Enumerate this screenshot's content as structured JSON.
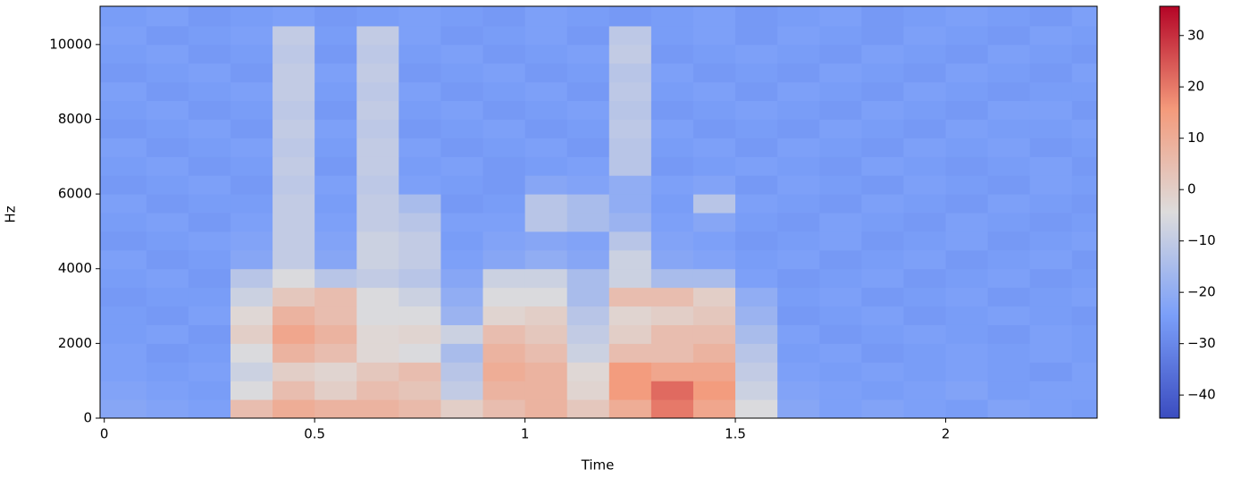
{
  "chart_data": {
    "type": "heatmap",
    "xlabel": "Time",
    "ylabel": "Hz",
    "x_edges": [
      -0.01,
      0.1,
      0.2,
      0.3,
      0.4,
      0.5,
      0.6,
      0.7,
      0.8,
      0.9,
      1.0,
      1.1,
      1.2,
      1.3,
      1.4,
      1.5,
      1.6,
      1.7,
      1.8,
      1.9,
      2.0,
      2.1,
      2.2,
      2.3,
      2.36
    ],
    "y_edges": [
      0,
      500,
      1000,
      1500,
      2000,
      2500,
      3000,
      3500,
      4000,
      4500,
      5000,
      5500,
      6000,
      6500,
      7000,
      7500,
      8000,
      8500,
      9000,
      9500,
      10000,
      10500,
      11025
    ],
    "values": [
      [
        -22,
        -23,
        -24,
        5,
        10,
        8,
        8,
        6,
        0,
        5,
        8,
        2,
        10,
        20,
        12,
        -5,
        -22,
        -24,
        -23,
        -24,
        -25,
        -23,
        -24,
        -25
      ],
      [
        -23,
        -24,
        -25,
        -5,
        5,
        0,
        5,
        3,
        -10,
        8,
        8,
        -2,
        15,
        22,
        15,
        -8,
        -23,
        -24,
        -25,
        -24,
        -23,
        -25,
        -24,
        -24
      ],
      [
        -24,
        -25,
        -24,
        -8,
        0,
        -2,
        2,
        5,
        -12,
        10,
        8,
        -3,
        15,
        12,
        12,
        -10,
        -24,
        -25,
        -24,
        -25,
        -24,
        -25,
        -26,
        -24
      ],
      [
        -24,
        -26,
        -25,
        -5,
        8,
        5,
        -3,
        -5,
        -15,
        8,
        5,
        -8,
        5,
        5,
        8,
        -12,
        -25,
        -24,
        -26,
        -25,
        -24,
        -25,
        -24,
        -25
      ],
      [
        -25,
        -24,
        -26,
        0,
        12,
        8,
        -3,
        -2,
        -8,
        5,
        2,
        -10,
        0,
        5,
        5,
        -15,
        -24,
        -26,
        -25,
        -24,
        -25,
        -26,
        -24,
        -25
      ],
      [
        -25,
        -26,
        -24,
        -3,
        8,
        5,
        -5,
        -5,
        -18,
        -2,
        0,
        -12,
        -2,
        0,
        2,
        -18,
        -26,
        -25,
        -24,
        -26,
        -25,
        -24,
        -25,
        -26
      ],
      [
        -26,
        -25,
        -25,
        -8,
        2,
        5,
        -5,
        -8,
        -20,
        -5,
        -5,
        -15,
        5,
        5,
        0,
        -20,
        -25,
        -24,
        -26,
        -25,
        -24,
        -26,
        -25,
        -24
      ],
      [
        -25,
        -24,
        -26,
        -12,
        -5,
        -12,
        -10,
        -12,
        -22,
        -8,
        -8,
        -15,
        -8,
        -15,
        -15,
        -24,
        -26,
        -25,
        -24,
        -26,
        -25,
        -24,
        -26,
        -25
      ],
      [
        -24,
        -26,
        -25,
        -22,
        -10,
        -22,
        -8,
        -10,
        -24,
        -22,
        -20,
        -22,
        -8,
        -22,
        -23,
        -25,
        -24,
        -26,
        -25,
        -24,
        -26,
        -25,
        -24,
        -26
      ],
      [
        -26,
        -25,
        -24,
        -23,
        -10,
        -23,
        -8,
        -10,
        -25,
        -23,
        -22,
        -23,
        -12,
        -23,
        -24,
        -26,
        -25,
        -24,
        -26,
        -25,
        -24,
        -26,
        -25,
        -24
      ],
      [
        -25,
        -24,
        -26,
        -24,
        -10,
        -24,
        -10,
        -12,
        -24,
        -24,
        -12,
        -15,
        -18,
        -24,
        -22,
        -25,
        -26,
        -24,
        -25,
        -26,
        -24,
        -25,
        -26,
        -25
      ],
      [
        -24,
        -26,
        -25,
        -25,
        -10,
        -25,
        -10,
        -15,
        -26,
        -25,
        -12,
        -15,
        -20,
        -25,
        -12,
        -24,
        -25,
        -26,
        -24,
        -25,
        -26,
        -24,
        -25,
        -26
      ],
      [
        -26,
        -25,
        -24,
        -26,
        -11,
        -24,
        -11,
        -24,
        -25,
        -26,
        -22,
        -23,
        -20,
        -24,
        -23,
        -26,
        -24,
        -25,
        -26,
        -24,
        -25,
        -26,
        -24,
        -25
      ],
      [
        -25,
        -24,
        -26,
        -25,
        -10,
        -26,
        -10,
        -25,
        -24,
        -26,
        -25,
        -24,
        -12,
        -26,
        -25,
        -24,
        -25,
        -26,
        -24,
        -25,
        -26,
        -25,
        -24,
        -26
      ],
      [
        -24,
        -26,
        -25,
        -24,
        -11,
        -25,
        -10,
        -24,
        -26,
        -25,
        -24,
        -26,
        -12,
        -25,
        -24,
        -26,
        -24,
        -25,
        -26,
        -24,
        -25,
        -24,
        -26,
        -25
      ],
      [
        -26,
        -25,
        -24,
        -26,
        -10,
        -24,
        -11,
        -26,
        -25,
        -24,
        -26,
        -25,
        -11,
        -24,
        -26,
        -25,
        -26,
        -24,
        -25,
        -26,
        -24,
        -25,
        -25,
        -24
      ],
      [
        -25,
        -24,
        -26,
        -25,
        -11,
        -26,
        -10,
        -25,
        -24,
        -26,
        -25,
        -24,
        -12,
        -26,
        -25,
        -24,
        -25,
        -26,
        -24,
        -25,
        -26,
        -24,
        -24,
        -26
      ],
      [
        -24,
        -26,
        -25,
        -24,
        -10,
        -25,
        -11,
        -24,
        -26,
        -25,
        -24,
        -26,
        -11,
        -25,
        -24,
        -26,
        -24,
        -25,
        -26,
        -24,
        -25,
        -26,
        -25,
        -25
      ],
      [
        -26,
        -25,
        -24,
        -26,
        -10,
        -24,
        -10,
        -26,
        -25,
        -24,
        -26,
        -25,
        -12,
        -24,
        -26,
        -25,
        -26,
        -24,
        -25,
        -26,
        -24,
        -25,
        -26,
        -24
      ],
      [
        -25,
        -24,
        -26,
        -25,
        -11,
        -26,
        -11,
        -25,
        -24,
        -26,
        -25,
        -24,
        -10,
        -26,
        -25,
        -24,
        -25,
        -26,
        -24,
        -25,
        -26,
        -24,
        -25,
        -26
      ],
      [
        -24,
        -26,
        -25,
        -24,
        -10,
        -25,
        -10,
        -24,
        -26,
        -25,
        -24,
        -26,
        -11,
        -25,
        -24,
        -26,
        -24,
        -25,
        -26,
        -24,
        -25,
        -26,
        -24,
        -25
      ],
      [
        -25,
        -24,
        -26,
        -25,
        -24,
        -26,
        -25,
        -24,
        -25,
        -26,
        -24,
        -25,
        -26,
        -25,
        -24,
        -26,
        -25,
        -24,
        -26,
        -25,
        -24,
        -25,
        -26,
        -24
      ]
    ],
    "xlim": [
      -0.01,
      2.36
    ],
    "ylim": [
      0,
      11025
    ],
    "xticks": [
      0,
      0.5,
      1,
      1.5,
      2
    ],
    "yticks": [
      0,
      2000,
      4000,
      6000,
      8000,
      10000
    ],
    "clim": [
      -44.5,
      35.7
    ],
    "cticks": [
      {
        "value": -40,
        "label": "−40"
      },
      {
        "value": -30,
        "label": "−30"
      },
      {
        "value": -20,
        "label": "−20"
      },
      {
        "value": -10,
        "label": "−10"
      },
      0,
      10,
      20,
      30
    ],
    "colormap": [
      "#3b4cc0",
      "#7b9ff9",
      "#dddcdc",
      "#f49a7b",
      "#b40426"
    ]
  }
}
